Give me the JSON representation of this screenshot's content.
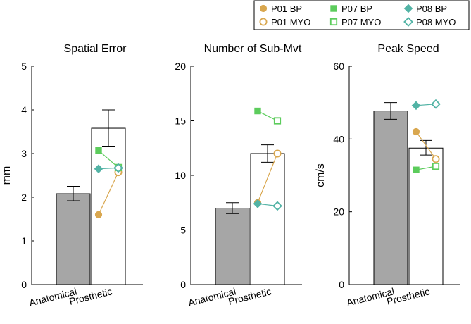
{
  "legend": {
    "entries": [
      {
        "label": "P01 BP",
        "participant": "P01",
        "condition": "BP",
        "marker": "circle",
        "filled": true,
        "color": "#d9a74f"
      },
      {
        "label": "P07 BP",
        "participant": "P07",
        "condition": "BP",
        "marker": "square",
        "filled": true,
        "color": "#5ccc5c"
      },
      {
        "label": "P08 BP",
        "participant": "P08",
        "condition": "BP",
        "marker": "diamond",
        "filled": true,
        "color": "#52b3a5"
      },
      {
        "label": "P01 MYO",
        "participant": "P01",
        "condition": "MYO",
        "marker": "circle",
        "filled": false,
        "color": "#d9a74f"
      },
      {
        "label": "P07 MYO",
        "participant": "P07",
        "condition": "MYO",
        "marker": "square",
        "filled": false,
        "color": "#5ccc5c"
      },
      {
        "label": "P08 MYO",
        "participant": "P08",
        "condition": "MYO",
        "marker": "diamond",
        "filled": false,
        "color": "#52b3a5"
      }
    ]
  },
  "colors": {
    "anatomical_bar": "#a6a6a6",
    "prosthetic_bar": "#ffffff",
    "P01": "#d9a74f",
    "P07": "#5ccc5c",
    "P08": "#52b3a5"
  },
  "chart_data": [
    {
      "type": "bar",
      "title": "Spatial Error",
      "xlabel": "",
      "ylabel": "mm",
      "ylim": [
        0,
        5
      ],
      "yticks": [
        "0",
        "1",
        "2",
        "3",
        "4",
        "5"
      ],
      "categories": [
        "Anatomical",
        "Prosthetic"
      ],
      "values": [
        2.08,
        3.58
      ],
      "errors": [
        [
          1.92,
          2.25
        ],
        [
          3.17,
          4.0
        ]
      ],
      "participants": [
        {
          "id": "P01",
          "BP": 1.6,
          "MYO": 2.57
        },
        {
          "id": "P07",
          "BP": 3.07,
          "MYO": 2.68
        },
        {
          "id": "P08",
          "BP": 2.65,
          "MYO": 2.67
        }
      ]
    },
    {
      "type": "bar",
      "title": "Number of Sub-Mvt",
      "xlabel": "",
      "ylabel": "",
      "ylim": [
        0,
        20
      ],
      "yticks": [
        "0",
        "5",
        "10",
        "15",
        "20"
      ],
      "categories": [
        "Anatomical",
        "Prosthetic"
      ],
      "values": [
        7.0,
        12.0
      ],
      "errors": [
        [
          6.5,
          7.5
        ],
        [
          11.2,
          12.8
        ]
      ],
      "participants": [
        {
          "id": "P01",
          "BP": 7.5,
          "MYO": 12.0
        },
        {
          "id": "P07",
          "BP": 15.9,
          "MYO": 15.0
        },
        {
          "id": "P08",
          "BP": 7.4,
          "MYO": 7.2
        }
      ]
    },
    {
      "type": "bar",
      "title": "Peak Speed",
      "xlabel": "",
      "ylabel": "cm/s",
      "ylim": [
        0,
        60
      ],
      "yticks": [
        "0",
        "20",
        "40",
        "60"
      ],
      "categories": [
        "Anatomical",
        "Prosthetic"
      ],
      "values": [
        47.7,
        37.5
      ],
      "errors": [
        [
          45.4,
          50.0
        ],
        [
          35.6,
          39.6
        ]
      ],
      "participants": [
        {
          "id": "P01",
          "BP": 42.0,
          "MYO": 34.5
        },
        {
          "id": "P07",
          "BP": 31.5,
          "MYO": 32.5
        },
        {
          "id": "P08",
          "BP": 49.2,
          "MYO": 49.6
        }
      ]
    }
  ]
}
